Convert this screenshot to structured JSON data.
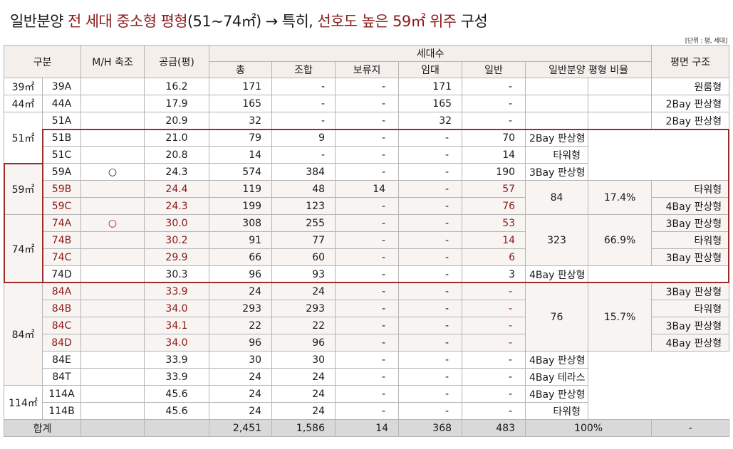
{
  "title": {
    "part1": "일반분양 ",
    "part2": "전 세대 중소형 평형",
    "part3": "(51~74㎡) ",
    "arrow": "→",
    "part4": " 특히, ",
    "part5": "선호도 높은 59㎡ 위주",
    "part6": " 구성"
  },
  "unit_note": "[단위 : 평, 세대]",
  "headers": {
    "gubun": "구분",
    "mh": "M/H 축조",
    "supply": "공급(평)",
    "households": "세대수",
    "total": "총",
    "union": "조합",
    "reserve": "보류지",
    "rental": "임대",
    "general": "일반",
    "ratio": "일반분양 평형 비율",
    "plan": "평면 구조"
  },
  "groups": [
    {
      "size": "39㎡",
      "rows": [
        {
          "type": "39A",
          "mh": "",
          "supply": "16.2",
          "total": "171",
          "union": "-",
          "reserve": "-",
          "rental": "171",
          "general": "-",
          "plan": "원룸형"
        }
      ]
    },
    {
      "size": "44㎡",
      "rows": [
        {
          "type": "44A",
          "mh": "",
          "supply": "17.9",
          "total": "165",
          "union": "-",
          "reserve": "-",
          "rental": "165",
          "general": "-",
          "plan": "2Bay 판상형"
        }
      ]
    },
    {
      "size": "51㎡",
      "rows": [
        {
          "type": "51A",
          "mh": "",
          "supply": "20.9",
          "total": "32",
          "union": "-",
          "reserve": "-",
          "rental": "32",
          "general": "-",
          "plan": "2Bay 판상형"
        },
        {
          "type": "51B",
          "mh": "",
          "supply": "21.0",
          "total": "79",
          "union": "9",
          "reserve": "-",
          "rental": "-",
          "general": "70",
          "plan": "2Bay 판상형"
        },
        {
          "type": "51C",
          "mh": "",
          "supply": "20.8",
          "total": "14",
          "union": "-",
          "reserve": "-",
          "rental": "-",
          "general": "14",
          "plan": "타워형"
        }
      ]
    },
    {
      "size": "59㎡",
      "rows": [
        {
          "type": "59A",
          "mh": "○",
          "supply": "24.3",
          "total": "574",
          "union": "384",
          "reserve": "-",
          "rental": "-",
          "general": "190",
          "plan": "3Bay 판상형"
        },
        {
          "type": "59B",
          "mh": "",
          "supply": "24.4",
          "total": "119",
          "union": "48",
          "reserve": "14",
          "rental": "-",
          "general": "57",
          "plan": "타워형"
        },
        {
          "type": "59C",
          "mh": "",
          "supply": "24.3",
          "total": "199",
          "union": "123",
          "reserve": "-",
          "rental": "-",
          "general": "76",
          "plan": "4Bay 판상형"
        }
      ]
    },
    {
      "size": "74㎡",
      "rows": [
        {
          "type": "74A",
          "mh": "○",
          "supply": "30.0",
          "total": "308",
          "union": "255",
          "reserve": "-",
          "rental": "-",
          "general": "53",
          "plan": "3Bay 판상형"
        },
        {
          "type": "74B",
          "mh": "",
          "supply": "30.2",
          "total": "91",
          "union": "77",
          "reserve": "-",
          "rental": "-",
          "general": "14",
          "plan": "타워형"
        },
        {
          "type": "74C",
          "mh": "",
          "supply": "29.9",
          "total": "66",
          "union": "60",
          "reserve": "-",
          "rental": "-",
          "general": "6",
          "plan": "3Bay 판상형"
        },
        {
          "type": "74D",
          "mh": "",
          "supply": "30.3",
          "total": "96",
          "union": "93",
          "reserve": "-",
          "rental": "-",
          "general": "3",
          "plan": "4Bay 판상형"
        }
      ]
    },
    {
      "size": "84㎡",
      "rows": [
        {
          "type": "84A",
          "mh": "",
          "supply": "33.9",
          "total": "24",
          "union": "24",
          "reserve": "-",
          "rental": "-",
          "general": "-",
          "plan": "3Bay 판상형"
        },
        {
          "type": "84B",
          "mh": "",
          "supply": "34.0",
          "total": "293",
          "union": "293",
          "reserve": "-",
          "rental": "-",
          "general": "-",
          "plan": "타워형"
        },
        {
          "type": "84C",
          "mh": "",
          "supply": "34.1",
          "total": "22",
          "union": "22",
          "reserve": "-",
          "rental": "-",
          "general": "-",
          "plan": "3Bay 판상형"
        },
        {
          "type": "84D",
          "mh": "",
          "supply": "34.0",
          "total": "96",
          "union": "96",
          "reserve": "-",
          "rental": "-",
          "general": "-",
          "plan": "4Bay 판상형"
        },
        {
          "type": "84E",
          "mh": "",
          "supply": "33.9",
          "total": "30",
          "union": "30",
          "reserve": "-",
          "rental": "-",
          "general": "-",
          "plan": "4Bay 판상형"
        },
        {
          "type": "84T",
          "mh": "",
          "supply": "33.9",
          "total": "24",
          "union": "24",
          "reserve": "-",
          "rental": "-",
          "general": "-",
          "plan": "4Bay 테라스"
        }
      ]
    },
    {
      "size": "114㎡",
      "rows": [
        {
          "type": "114A",
          "mh": "",
          "supply": "45.6",
          "total": "24",
          "union": "24",
          "reserve": "-",
          "rental": "-",
          "general": "-",
          "plan": "4Bay 판상형"
        },
        {
          "type": "114B",
          "mh": "",
          "supply": "45.6",
          "total": "24",
          "union": "24",
          "reserve": "-",
          "rental": "-",
          "general": "-",
          "plan": "타워형"
        }
      ]
    }
  ],
  "ratios": {
    "r51": {
      "count": "84",
      "pct": "17.4%"
    },
    "r59": {
      "count": "323",
      "pct": "66.9%"
    },
    "r74": {
      "count": "76",
      "pct": "15.7%"
    }
  },
  "totals": {
    "label": "합계",
    "total": "2,451",
    "union": "1,586",
    "reserve": "14",
    "rental": "368",
    "general": "483",
    "ratio": "100%",
    "plan": "-"
  }
}
